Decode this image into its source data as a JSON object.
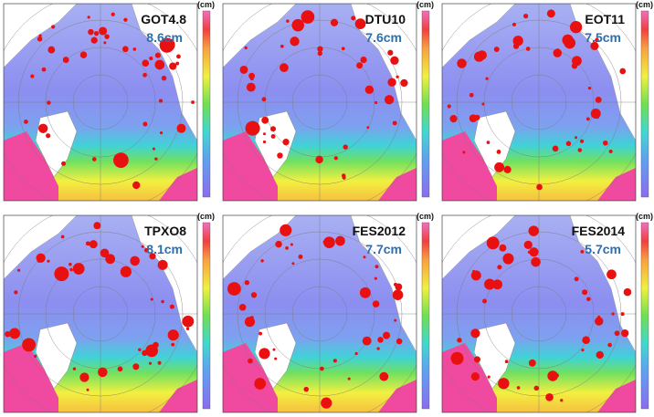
{
  "panels": [
    {
      "model": "GOT4.8",
      "rms": "8.6cm",
      "unit": "(cm)"
    },
    {
      "model": "DTU10",
      "rms": "7.6cm",
      "unit": "(cm)"
    },
    {
      "model": "EOT11",
      "rms": "7.5cm",
      "unit": "(cm)"
    },
    {
      "model": "TPXO8",
      "rms": "8.1cm",
      "unit": "(cm)"
    },
    {
      "model": "FES2012",
      "rms": "7.7cm",
      "unit": "(cm)"
    },
    {
      "model": "FES2014",
      "rms": "5.7cm",
      "unit": "(cm)"
    }
  ]
}
